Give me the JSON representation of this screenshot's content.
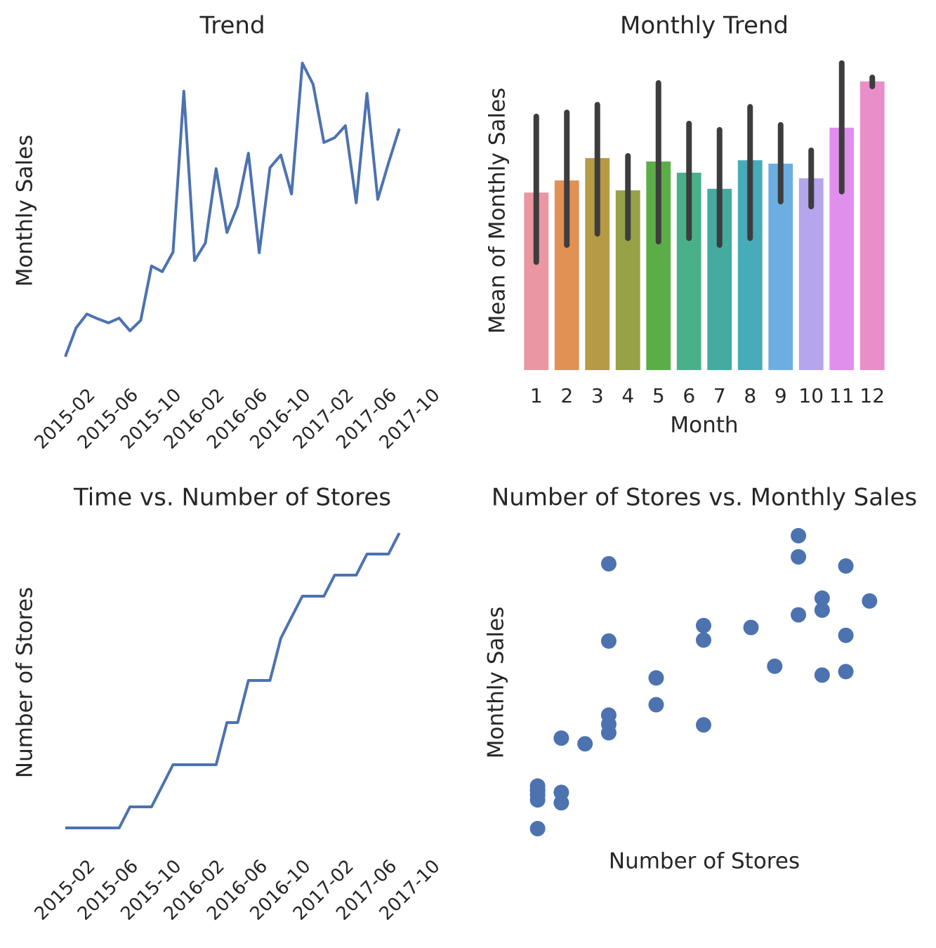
{
  "chart_data": [
    {
      "type": "line",
      "title": "Trend",
      "ylabel": "Monthly Sales",
      "color": "#4c72b0",
      "x": [
        "2015-02",
        "2015-03",
        "2015-04",
        "2015-05",
        "2015-06",
        "2015-07",
        "2015-08",
        "2015-09",
        "2015-10",
        "2015-11",
        "2015-12",
        "2016-01",
        "2016-02",
        "2016-03",
        "2016-04",
        "2016-05",
        "2016-06",
        "2016-07",
        "2016-08",
        "2016-09",
        "2016-10",
        "2016-11",
        "2016-12",
        "2017-01",
        "2017-02",
        "2017-03",
        "2017-04",
        "2017-05",
        "2017-06",
        "2017-07",
        "2017-08",
        "2017-09"
      ],
      "values": [
        4.9,
        14,
        18.4,
        16.9,
        15.6,
        17.1,
        13.1,
        16.4,
        33.6,
        31.8,
        38,
        88.9,
        35.3,
        40.9,
        64.4,
        44.2,
        52.7,
        69.3,
        37.8,
        64.7,
        68.7,
        56.4,
        97.8,
        91.1,
        72.7,
        74.2,
        78,
        53.6,
        88.2,
        54.7,
        66.2,
        77.1
      ],
      "xlim": [
        "2015-02",
        "2017-10"
      ],
      "xticks": [
        "2015-02",
        "2015-06",
        "2015-10",
        "2016-02",
        "2016-06",
        "2016-10",
        "2017-02",
        "2017-06",
        "2017-10"
      ],
      "ylim": [
        0,
        100
      ]
    },
    {
      "type": "bar",
      "title": "Monthly Trend",
      "xlabel": "Month",
      "ylabel": "Mean of Monthly Sales",
      "categories": [
        "1",
        "2",
        "3",
        "4",
        "5",
        "6",
        "7",
        "8",
        "9",
        "10",
        "11",
        "12"
      ],
      "values": [
        57.2,
        61.1,
        68.3,
        57.9,
        67.2,
        63.6,
        58.4,
        67.6,
        66.5,
        61.8,
        78.1,
        93.0
      ],
      "ci_low": [
        34.8,
        40.3,
        43.9,
        42.5,
        41.4,
        42.5,
        40.3,
        42.5,
        54.3,
        52.7,
        57.5,
        91.4
      ],
      "ci_high": [
        81.7,
        83.0,
        85.5,
        69.0,
        92.5,
        79.4,
        77.4,
        84.8,
        79.0,
        70.8,
        98.9,
        94.3
      ],
      "colors": [
        "#ea96a3",
        "#e19153",
        "#b69a46",
        "#97a145",
        "#5bae47",
        "#4ab08a",
        "#45aba1",
        "#47abb8",
        "#6daee2",
        "#b5a5ec",
        "#e08fed",
        "#ea8ec9"
      ],
      "error_color": "#3d3d3d",
      "ylim": [
        0,
        100
      ]
    },
    {
      "type": "line",
      "title": "Time vs. Number of Stores",
      "ylabel": "Number of Stores",
      "color": "#4c72b0",
      "x": [
        "2015-02",
        "2015-03",
        "2015-04",
        "2015-05",
        "2015-06",
        "2015-07",
        "2015-08",
        "2015-09",
        "2015-10",
        "2015-11",
        "2015-12",
        "2016-01",
        "2016-02",
        "2016-03",
        "2016-04",
        "2016-05",
        "2016-06",
        "2016-07",
        "2016-08",
        "2016-09",
        "2016-10",
        "2016-11",
        "2016-12",
        "2017-01",
        "2017-02",
        "2017-03",
        "2017-04",
        "2017-05",
        "2017-06",
        "2017-07",
        "2017-08",
        "2017-09"
      ],
      "values": [
        1,
        1,
        1,
        1,
        1,
        1,
        2,
        2,
        2,
        3,
        4,
        4,
        4,
        4,
        4,
        6,
        6,
        8,
        8,
        8,
        10,
        11,
        12,
        12,
        12,
        13,
        13,
        13,
        14,
        14,
        14,
        15
      ],
      "xlim": [
        "2015-02",
        "2017-10"
      ],
      "xticks": [
        "2015-02",
        "2015-06",
        "2015-10",
        "2016-02",
        "2016-06",
        "2016-10",
        "2017-02",
        "2017-06",
        "2017-10"
      ],
      "ylim": [
        0.3,
        15.5
      ]
    },
    {
      "type": "scatter",
      "title": "Number of Stores vs. Monthly Sales",
      "xlabel": "Number of Stores",
      "ylabel": "Monthly Sales",
      "color": "#4c72b0",
      "x": [
        1,
        1,
        1,
        1,
        1,
        1,
        2,
        2,
        2,
        3,
        4,
        4,
        4,
        4,
        4,
        6,
        6,
        8,
        8,
        8,
        10,
        11,
        12,
        12,
        12,
        13,
        13,
        13,
        14,
        14,
        14,
        15
      ],
      "y": [
        4.9,
        14,
        18.4,
        16.9,
        15.6,
        17.1,
        13.1,
        16.4,
        33.6,
        31.8,
        38,
        88.9,
        35.3,
        40.9,
        64.4,
        44.2,
        52.7,
        69.3,
        37.8,
        64.7,
        68.7,
        56.4,
        97.8,
        91.1,
        72.7,
        74.2,
        78,
        53.6,
        88.2,
        54.7,
        66.2,
        77.1
      ],
      "xlim": [
        0.3,
        15.7
      ],
      "ylim": [
        0,
        100
      ]
    }
  ]
}
